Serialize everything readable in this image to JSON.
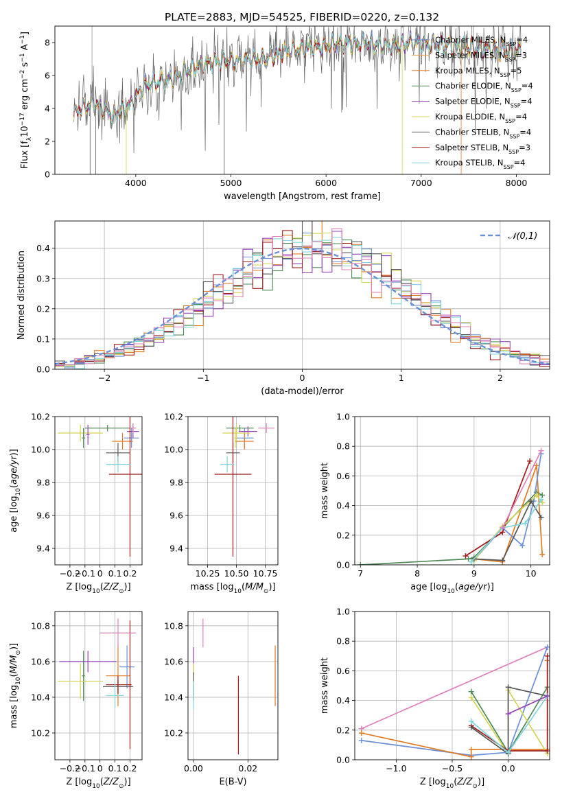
{
  "title": "PLATE=2883, MJD=54525, FIBERID=0220, z=0.132",
  "colors": {
    "Chabrier MILES": "#6a8fd6",
    "Salpeter MILES": "#e3a24a",
    "Kroupa MILES": "#e07b22",
    "Chabrier ELODIE": "#4e8a56",
    "Salpeter ELODIE": "#9340b8",
    "Kroupa ELODIE": "#d4d455",
    "Chabrier STELIB": "#555555",
    "Salpeter STELIB": "#a11a1a",
    "Kroupa STELIB": "#7fd4dc",
    "pink": "#e07fb8",
    "normal": "#6a8fd6"
  },
  "chart_data": [
    {
      "id": "spectrum",
      "type": "line",
      "xlabel": "wavelength [Angstrom, rest frame]",
      "ylabel": "Flux [f",
      "xlim": [
        3150,
        8350
      ],
      "ylim": [
        0,
        9
      ],
      "xticks": [
        4000,
        5000,
        6000,
        7000,
        8000
      ],
      "yticks": [
        0,
        2,
        4,
        6,
        8
      ],
      "legend_position": "upper-right",
      "legend": [
        {
          "name": "Chabrier MILES, N",
          "nssp": "=4"
        },
        {
          "name": "Salpeter MILES, N",
          "nssp": "=3"
        },
        {
          "name": "Kroupa MILES, N",
          "nssp": "=5"
        },
        {
          "name": "Chabrier ELODIE, N",
          "nssp": "=4"
        },
        {
          "name": "Salpeter ELODIE, N",
          "nssp": "=4"
        },
        {
          "name": "Kroupa ELODIE, N",
          "nssp": "=4"
        },
        {
          "name": "Chabrier STELIB, N",
          "nssp": "=4"
        },
        {
          "name": "Salpeter STELIB, N",
          "nssp": "=3"
        },
        {
          "name": "Kroupa STELIB, N",
          "nssp": "=4"
        }
      ],
      "continuum": [
        [
          3350,
          3.7
        ],
        [
          3450,
          4.1
        ],
        [
          3550,
          4.3
        ],
        [
          3650,
          4.0
        ],
        [
          3750,
          3.6
        ],
        [
          3850,
          3.9
        ],
        [
          3950,
          4.2
        ],
        [
          4050,
          5.2
        ],
        [
          4150,
          5.5
        ],
        [
          4250,
          5.6
        ],
        [
          4350,
          5.7
        ],
        [
          4500,
          6.2
        ],
        [
          4700,
          6.7
        ],
        [
          4900,
          6.9
        ],
        [
          5100,
          6.9
        ],
        [
          5300,
          7.0
        ],
        [
          5500,
          7.3
        ],
        [
          5700,
          7.6
        ],
        [
          5900,
          7.7
        ],
        [
          6100,
          7.9
        ],
        [
          6300,
          8.0
        ],
        [
          6500,
          7.9
        ],
        [
          6700,
          7.8
        ],
        [
          6900,
          8.0
        ],
        [
          7100,
          7.9
        ],
        [
          7300,
          7.8
        ],
        [
          7500,
          7.7
        ],
        [
          7700,
          7.6
        ],
        [
          7900,
          7.5
        ],
        [
          8050,
          7.4
        ]
      ]
    },
    {
      "id": "residuals",
      "type": "histogram",
      "xlabel": "(data-model)/error",
      "ylabel": "Normed distribution",
      "xlim": [
        -2.5,
        2.5
      ],
      "ylim": [
        0,
        0.49
      ],
      "xticks": [
        -2,
        -1,
        0,
        1,
        2
      ],
      "yticks": [
        0.0,
        0.1,
        0.2,
        0.3,
        0.4
      ],
      "legend_label": "𝒩(0,1)",
      "legend_position": "upper-right",
      "bin_width": 0.1,
      "grid": true
    },
    {
      "id": "age_vs_Z",
      "type": "scatter-errorbar",
      "xlabel": "Z [log10(Z/Z⊙)]",
      "ylabel": "age  [log10(age/yr)]",
      "xlim": [
        -0.3,
        0.28
      ],
      "ylim": [
        9.3,
        10.2
      ],
      "xticks": [
        -0.2,
        -0.1,
        0.0,
        0.1,
        0.2
      ],
      "yticks": [
        9.4,
        9.6,
        9.8,
        10.0,
        10.2
      ],
      "points": [
        {
          "model": "Chabrier MILES",
          "x": 0.21,
          "y": 10.07,
          "xerr": 0.05,
          "yerr": 0.06
        },
        {
          "model": "Kroupa MILES",
          "x": 0.15,
          "y": 10.05,
          "xerr": 0.07,
          "yerr": 0.05
        },
        {
          "model": "Chabrier ELODIE",
          "x": 0.05,
          "y": 10.13,
          "xerr": 0.15,
          "yerr": 0.02
        },
        {
          "model": "Salpeter ELODIE",
          "x": 0.22,
          "y": 10.11,
          "xerr": 0.04,
          "yerr": 0.04
        },
        {
          "model": "Kroupa ELODIE",
          "x": -0.13,
          "y": 10.1,
          "xerr": 0.15,
          "yerr": 0.05
        },
        {
          "model": "Chabrier STELIB",
          "x": 0.12,
          "y": 9.98,
          "xerr": 0.08,
          "yerr": 0.06
        },
        {
          "model": "Salpeter STELIB",
          "x": 0.2,
          "y": 9.85,
          "xerr": 0.14,
          "yerr": 0.5
        },
        {
          "model": "Kroupa STELIB",
          "x": 0.12,
          "y": 9.91,
          "xerr": 0.08,
          "yerr": 0.05
        },
        {
          "model": "Chabrier ELODIE",
          "x": -0.11,
          "y": 10.07,
          "xerr": 0.01,
          "yerr": 0.06
        },
        {
          "model": "Salpeter ELODIE",
          "x": -0.08,
          "y": 10.09,
          "xerr": 0.01,
          "yerr": 0.06
        },
        {
          "model": "pink",
          "x": 0.22,
          "y": 10.13,
          "xerr": 0.02,
          "yerr": 0.03
        }
      ]
    },
    {
      "id": "age_vs_mass",
      "type": "scatter-errorbar",
      "xlabel": "mass [log10(M/M⊙)]",
      "ylabel": "",
      "xlim": [
        10.08,
        10.86
      ],
      "ylim": [
        9.3,
        10.2
      ],
      "xticks": [
        10.25,
        10.5,
        10.75
      ],
      "xticklabels": [
        "10.25",
        "10.50",
        "10.75"
      ],
      "yticks": [
        9.4,
        9.6,
        9.8,
        10.0,
        10.2
      ],
      "points": [
        {
          "model": "Chabrier MILES",
          "x": 10.57,
          "y": 10.07,
          "xerr": 0.08,
          "yerr": 0.06
        },
        {
          "model": "Kroupa MILES",
          "x": 10.57,
          "y": 10.05,
          "xerr": 0.08,
          "yerr": 0.05
        },
        {
          "model": "Chabrier ELODIE",
          "x": 10.53,
          "y": 10.13,
          "xerr": 0.12,
          "yerr": 0.02
        },
        {
          "model": "Salpeter ELODIE",
          "x": 10.6,
          "y": 10.11,
          "xerr": 0.08,
          "yerr": 0.03
        },
        {
          "model": "Kroupa ELODIE",
          "x": 10.5,
          "y": 10.1,
          "xerr": 0.12,
          "yerr": 0.05
        },
        {
          "model": "Chabrier STELIB",
          "x": 10.47,
          "y": 9.98,
          "xerr": 0.06,
          "yerr": 0.06
        },
        {
          "model": "Salpeter STELIB",
          "x": 10.47,
          "y": 9.85,
          "xerr": 0.16,
          "yerr": 0.5
        },
        {
          "model": "Kroupa STELIB",
          "x": 10.42,
          "y": 9.91,
          "xerr": 0.06,
          "yerr": 0.05
        },
        {
          "model": "Kroupa ELODIE",
          "x": 10.49,
          "y": 10.07,
          "xerr": 0.01,
          "yerr": 0.06
        },
        {
          "model": "pink",
          "x": 10.76,
          "y": 10.13,
          "xerr": 0.07,
          "yerr": 0.03
        }
      ]
    },
    {
      "id": "weight_vs_age",
      "type": "line",
      "xlabel": "age  [log10(age/yr)]",
      "ylabel": "mass weight",
      "xlim": [
        6.9,
        10.33
      ],
      "ylim": [
        0,
        1.0
      ],
      "xticks": [
        7,
        8,
        9,
        10
      ],
      "yticks": [
        0.0,
        0.2,
        0.4,
        0.6,
        0.8,
        1.0
      ],
      "grid": true,
      "series": [
        {
          "model": "Chabrier ELODIE",
          "x": [
            7.0,
            8.9,
            9.0,
            10.1,
            10.2
          ],
          "y": [
            0.0,
            0.04,
            0.05,
            0.49,
            0.47
          ]
        },
        {
          "model": "Salpeter STELIB",
          "x": [
            8.85,
            9.5,
            9.98
          ],
          "y": [
            0.06,
            0.22,
            0.7
          ]
        },
        {
          "model": "Kroupa MILES",
          "x": [
            9.0,
            9.5,
            10.1,
            10.2
          ],
          "y": [
            0.04,
            0.02,
            0.67,
            0.07
          ]
        },
        {
          "model": "Chabrier MILES",
          "x": [
            9.0,
            9.5,
            9.85,
            10.05,
            10.18
          ],
          "y": [
            0.03,
            0.25,
            0.13,
            0.43,
            0.75
          ]
        },
        {
          "model": "Kroupa ELODIE",
          "x": [
            9.0,
            9.5,
            10.1,
            10.2
          ],
          "y": [
            0.03,
            0.26,
            0.47,
            0.42
          ]
        },
        {
          "model": "Chabrier STELIB",
          "x": [
            9.0,
            9.5,
            10.0,
            10.18
          ],
          "y": [
            0.04,
            0.03,
            0.43,
            0.32
          ]
        },
        {
          "model": "Kroupa STELIB",
          "x": [
            8.95,
            9.5,
            9.9,
            10.18
          ],
          "y": [
            0.02,
            0.25,
            0.28,
            0.44
          ]
        },
        {
          "model": "pink",
          "x": [
            9.5,
            10.18
          ],
          "y": [
            0.25,
            0.77
          ]
        }
      ]
    },
    {
      "id": "mass_vs_Z",
      "type": "scatter-errorbar",
      "xlabel": "Z [log10(Z/Z⊙)]",
      "ylabel": "mass [log10(M/M⊙)]",
      "xlim": [
        -0.3,
        0.28
      ],
      "ylim": [
        10.05,
        10.88
      ],
      "xticks": [
        -0.2,
        -0.1,
        0.0,
        0.1,
        0.2
      ],
      "yticks": [
        10.2,
        10.4,
        10.6,
        10.8
      ],
      "points": [
        {
          "model": "Chabrier MILES",
          "x": 0.18,
          "y": 10.57,
          "xerr": 0.05,
          "yerr": 0.12
        },
        {
          "model": "Kroupa MILES",
          "x": 0.12,
          "y": 10.52,
          "xerr": 0.08,
          "yerr": 0.17
        },
        {
          "model": "Chabrier ELODIE",
          "x": -0.11,
          "y": 10.52,
          "xerr": 0.01,
          "yerr": 0.14
        },
        {
          "model": "Salpeter ELODIE",
          "x": -0.08,
          "y": 10.6,
          "xerr": 0.19,
          "yerr": 0.06
        },
        {
          "model": "Kroupa ELODIE",
          "x": -0.13,
          "y": 10.49,
          "xerr": 0.15,
          "yerr": 0.1
        },
        {
          "model": "Chabrier STELIB",
          "x": 0.12,
          "y": 10.46,
          "xerr": 0.1,
          "yerr": 0.04
        },
        {
          "model": "Salpeter STELIB",
          "x": 0.12,
          "y": 10.47,
          "xerr": 0.08,
          "yerr": 0.05
        },
        {
          "model": "Kroupa STELIB",
          "x": 0.1,
          "y": 10.41,
          "xerr": 0.06,
          "yerr": 0.07
        },
        {
          "model": "Salpeter STELIB",
          "x": 0.2,
          "y": 10.47,
          "xerr": 0.01,
          "yerr": 0.36
        },
        {
          "model": "pink",
          "x": 0.12,
          "y": 10.76,
          "xerr": 0.12,
          "yerr": 0.08
        }
      ]
    },
    {
      "id": "mass_vs_ebv",
      "type": "scatter-errorbar",
      "xlabel": "E(B-V)",
      "ylabel": "",
      "xlim": [
        -0.002,
        0.031
      ],
      "ylim": [
        10.05,
        10.88
      ],
      "xticks": [
        0.0,
        0.02
      ],
      "xticklabels": [
        "0.00",
        "0.02"
      ],
      "yticks": [
        10.2,
        10.4,
        10.6,
        10.8
      ],
      "points": [
        {
          "model": "Salpeter ELODIE",
          "x": 0.0,
          "y": 10.6,
          "xerr": 0,
          "yerr": 0.08
        },
        {
          "model": "Kroupa ELODIE",
          "x": 0.0,
          "y": 10.49,
          "xerr": 0,
          "yerr": 0.1
        },
        {
          "model": "Chabrier STELIB",
          "x": 0.0,
          "y": 10.46,
          "xerr": 0,
          "yerr": 0.08
        },
        {
          "model": "Kroupa STELIB",
          "x": 0.0,
          "y": 10.41,
          "xerr": 0,
          "yerr": 0.08
        },
        {
          "model": "pink",
          "x": 0.0035,
          "y": 10.76,
          "xerr": 0,
          "yerr": 0.08
        },
        {
          "model": "Salpeter STELIB",
          "x": 0.0165,
          "y": 10.3,
          "xerr": 0,
          "yerr": 0.22
        },
        {
          "model": "Kroupa MILES",
          "x": 0.03,
          "y": 10.52,
          "xerr": 0,
          "yerr": 0.17
        }
      ]
    },
    {
      "id": "weight_vs_Z",
      "type": "line",
      "xlabel": "Z [log10(Z/Z⊙)]",
      "ylabel": "mass weight",
      "xlim": [
        -1.37,
        0.37
      ],
      "ylim": [
        0,
        1.0
      ],
      "xticks": [
        -1.0,
        -0.5,
        0.0
      ],
      "xticklabels": [
        "−1.0",
        "−0.5",
        "0.0"
      ],
      "yticks": [
        0.0,
        0.2,
        0.4,
        0.6,
        0.8,
        1.0
      ],
      "grid": true,
      "series": [
        {
          "model": "pink",
          "x": [
            -1.31,
            0.35
          ],
          "y": [
            0.21,
            0.76
          ]
        },
        {
          "model": "Chabrier MILES",
          "x": [
            -1.31,
            -0.33,
            0.0,
            0.35
          ],
          "y": [
            0.13,
            0.03,
            0.05,
            0.76
          ]
        },
        {
          "model": "Kroupa MILES",
          "x": [
            -1.31,
            -0.33,
            -0.33,
            0.35,
            0.35
          ],
          "y": [
            0.18,
            0.02,
            0.07,
            0.07,
            0.67
          ]
        },
        {
          "model": "Chabrier ELODIE",
          "x": [
            -0.33,
            0.0,
            0.35
          ],
          "y": [
            0.46,
            0.05,
            0.49
          ]
        },
        {
          "model": "Kroupa ELODIE",
          "x": [
            -0.33,
            0.0,
            0.0,
            0.35
          ],
          "y": [
            0.42,
            0.04,
            0.47,
            0.04
          ]
        },
        {
          "model": "Salpeter STELIB",
          "x": [
            -0.33,
            0.0,
            0.35,
            0.35
          ],
          "y": [
            0.23,
            0.06,
            0.06,
            0.7
          ]
        },
        {
          "model": "Chabrier STELIB",
          "x": [
            -0.33,
            0.0,
            0.0,
            0.35
          ],
          "y": [
            0.22,
            0.04,
            0.49,
            0.43
          ]
        },
        {
          "model": "Kroupa STELIB",
          "x": [
            -0.33,
            0.0,
            0.35
          ],
          "y": [
            0.26,
            0.05,
            0.43
          ]
        },
        {
          "model": "Salpeter ELODIE",
          "x": [
            0.0,
            0.35
          ],
          "y": [
            0.31,
            0.43
          ]
        }
      ]
    }
  ]
}
